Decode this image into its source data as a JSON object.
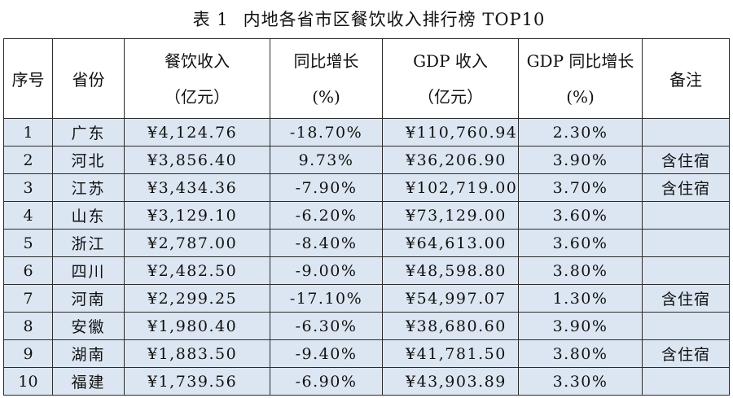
{
  "title": {
    "label": "表 1",
    "text": "内地各省市区餐饮收入排行榜 TOP10"
  },
  "headers": {
    "rank": "序号",
    "province": "省份",
    "revenue_line1": "餐饮收入",
    "revenue_line2": "（亿元）",
    "yoy_line1": "同比增长",
    "yoy_line2": "(%)",
    "gdp_line1": "GDP 收入",
    "gdp_line2": "（亿元）",
    "gdp_yoy_line1": "GDP 同比增长",
    "gdp_yoy_line2": "(%)",
    "note": "备注"
  },
  "rows": [
    {
      "rank": "1",
      "province": "广东",
      "revenue": "¥4,124.76",
      "yoy": "-18.70%",
      "gdp": "¥110,760.94",
      "gdp_yoy": "2.30%",
      "note": ""
    },
    {
      "rank": "2",
      "province": "河北",
      "revenue": "¥3,856.40",
      "yoy": "9.73%",
      "gdp": "¥36,206.90",
      "gdp_yoy": "3.90%",
      "note": "含住宿"
    },
    {
      "rank": "3",
      "province": "江苏",
      "revenue": "¥3,434.36",
      "yoy": "-7.90%",
      "gdp": "¥102,719.00",
      "gdp_yoy": "3.70%",
      "note": "含住宿"
    },
    {
      "rank": "4",
      "province": "山东",
      "revenue": "¥3,129.10",
      "yoy": "-6.20%",
      "gdp": "¥73,129.00",
      "gdp_yoy": "3.60%",
      "note": ""
    },
    {
      "rank": "5",
      "province": "浙江",
      "revenue": "¥2,787.00",
      "yoy": "-8.40%",
      "gdp": "¥64,613.00",
      "gdp_yoy": "3.60%",
      "note": ""
    },
    {
      "rank": "6",
      "province": "四川",
      "revenue": "¥2,482.50",
      "yoy": "-9.00%",
      "gdp": "¥48,598.80",
      "gdp_yoy": "3.80%",
      "note": ""
    },
    {
      "rank": "7",
      "province": "河南",
      "revenue": "¥2,299.25",
      "yoy": "-17.10%",
      "gdp": "¥54,997.07",
      "gdp_yoy": "1.30%",
      "note": "含住宿"
    },
    {
      "rank": "8",
      "province": "安徽",
      "revenue": "¥1,980.40",
      "yoy": "-6.30%",
      "gdp": "¥38,680.60",
      "gdp_yoy": "3.90%",
      "note": ""
    },
    {
      "rank": "9",
      "province": "湖南",
      "revenue": "¥1,883.50",
      "yoy": "-9.40%",
      "gdp": "¥41,781.50",
      "gdp_yoy": "3.80%",
      "note": "含住宿"
    },
    {
      "rank": "10",
      "province": "福建",
      "revenue": "¥1,739.56",
      "yoy": "-6.90%",
      "gdp": "¥43,903.89",
      "gdp_yoy": "3.30%",
      "note": ""
    }
  ],
  "colors": {
    "row_background": "#dce6f2",
    "header_background": "#ffffff",
    "border": "#2b2b2b"
  }
}
